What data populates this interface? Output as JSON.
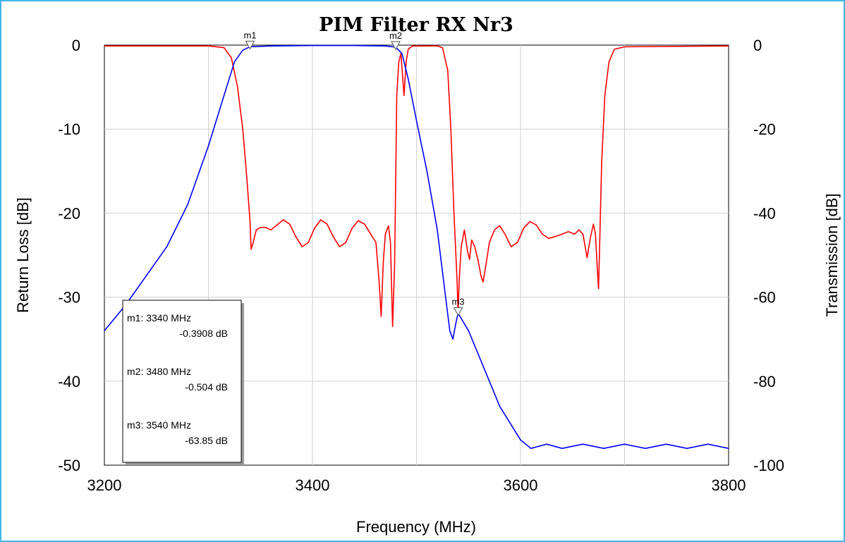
{
  "chart_data": {
    "type": "line",
    "title": "PIM Filter RX Nr3",
    "xlabel": "Frequency (MHz)",
    "ylabel_left": "Return Loss [dB]",
    "ylabel_right": "Transmission [dB]",
    "xlim": [
      3200,
      3800
    ],
    "ylim_left": [
      -50,
      0
    ],
    "ylim_right": [
      -100,
      0
    ],
    "x_ticks": [
      "3200",
      "3400",
      "3600",
      "3800"
    ],
    "y_ticks_left": [
      "0",
      "-10",
      "-20",
      "-30",
      "-40",
      "-50"
    ],
    "y_ticks_right": [
      "0",
      "-20",
      "-40",
      "-60",
      "-80",
      "-100"
    ],
    "grid": true,
    "series": [
      {
        "axis": "left",
        "color": "#ff0000",
        "points": [
          [
            3200,
            -0.1
          ],
          [
            3300,
            -0.1
          ],
          [
            3315,
            -0.3
          ],
          [
            3322,
            -1.5
          ],
          [
            3328,
            -5
          ],
          [
            3333,
            -10
          ],
          [
            3337,
            -16
          ],
          [
            3340,
            -21
          ],
          [
            3341,
            -24.3
          ],
          [
            3343,
            -23.5
          ],
          [
            3346,
            -22
          ],
          [
            3350,
            -21.7
          ],
          [
            3355,
            -21.7
          ],
          [
            3360,
            -22
          ],
          [
            3365,
            -21.5
          ],
          [
            3372,
            -20.8
          ],
          [
            3378,
            -21.3
          ],
          [
            3384,
            -22.8
          ],
          [
            3390,
            -24
          ],
          [
            3396,
            -23.5
          ],
          [
            3402,
            -21.8
          ],
          [
            3408,
            -20.8
          ],
          [
            3414,
            -21.3
          ],
          [
            3420,
            -22.8
          ],
          [
            3426,
            -24
          ],
          [
            3432,
            -23.5
          ],
          [
            3438,
            -21.8
          ],
          [
            3444,
            -20.9
          ],
          [
            3450,
            -21.3
          ],
          [
            3456,
            -22.5
          ],
          [
            3461,
            -23.5
          ],
          [
            3464,
            -28
          ],
          [
            3466,
            -32.3
          ],
          [
            3468,
            -26
          ],
          [
            3470,
            -22.5
          ],
          [
            3473,
            -21.5
          ],
          [
            3475,
            -23.5
          ],
          [
            3477,
            -33.5
          ],
          [
            3479,
            -26
          ],
          [
            3480,
            -16
          ],
          [
            3481,
            -6
          ],
          [
            3483,
            -2
          ],
          [
            3485,
            -1
          ],
          [
            3488,
            -6
          ],
          [
            3490,
            -2
          ],
          [
            3492,
            -0.5
          ],
          [
            3496,
            -0.1
          ],
          [
            3520,
            -0.1
          ],
          [
            3525,
            -0.3
          ],
          [
            3530,
            -3
          ],
          [
            3533,
            -10
          ],
          [
            3536,
            -20
          ],
          [
            3539,
            -28
          ],
          [
            3540,
            -32
          ],
          [
            3541,
            -28
          ],
          [
            3543,
            -24
          ],
          [
            3546,
            -22
          ],
          [
            3549,
            -24.5
          ],
          [
            3551,
            -25.5
          ],
          [
            3553,
            -23.2
          ],
          [
            3556,
            -24
          ],
          [
            3559,
            -25.5
          ],
          [
            3562,
            -27.5
          ],
          [
            3564,
            -28.2
          ],
          [
            3567,
            -26
          ],
          [
            3570,
            -23.5
          ],
          [
            3575,
            -22
          ],
          [
            3580,
            -21.5
          ],
          [
            3585,
            -22.5
          ],
          [
            3591,
            -24
          ],
          [
            3597,
            -23.5
          ],
          [
            3603,
            -21.8
          ],
          [
            3609,
            -21
          ],
          [
            3615,
            -21.4
          ],
          [
            3621,
            -22.5
          ],
          [
            3627,
            -23
          ],
          [
            3633,
            -22.8
          ],
          [
            3640,
            -22.5
          ],
          [
            3646,
            -22.2
          ],
          [
            3652,
            -22.5
          ],
          [
            3656,
            -22
          ],
          [
            3660,
            -22.5
          ],
          [
            3664,
            -25.3
          ],
          [
            3667,
            -23
          ],
          [
            3670,
            -21.3
          ],
          [
            3672,
            -22.5
          ],
          [
            3674,
            -27
          ],
          [
            3675,
            -29
          ],
          [
            3676,
            -24
          ],
          [
            3678,
            -14
          ],
          [
            3681,
            -6
          ],
          [
            3685,
            -2
          ],
          [
            3690,
            -0.5
          ],
          [
            3700,
            -0.2
          ],
          [
            3800,
            -0.1
          ]
        ]
      },
      {
        "axis": "right",
        "color": "#0000ff",
        "points": [
          [
            3200,
            -68
          ],
          [
            3220,
            -62
          ],
          [
            3240,
            -55
          ],
          [
            3260,
            -48
          ],
          [
            3280,
            -38
          ],
          [
            3300,
            -24
          ],
          [
            3315,
            -12
          ],
          [
            3325,
            -4
          ],
          [
            3333,
            -1.2
          ],
          [
            3340,
            -0.39
          ],
          [
            3360,
            -0.2
          ],
          [
            3400,
            -0.1
          ],
          [
            3440,
            -0.1
          ],
          [
            3470,
            -0.2
          ],
          [
            3480,
            -0.5
          ],
          [
            3486,
            -2
          ],
          [
            3492,
            -8
          ],
          [
            3500,
            -18
          ],
          [
            3510,
            -30
          ],
          [
            3520,
            -44
          ],
          [
            3527,
            -58
          ],
          [
            3532,
            -68
          ],
          [
            3535,
            -70
          ],
          [
            3538,
            -66
          ],
          [
            3540,
            -63.85
          ],
          [
            3550,
            -68
          ],
          [
            3560,
            -74
          ],
          [
            3570,
            -80
          ],
          [
            3580,
            -86
          ],
          [
            3590,
            -90
          ],
          [
            3600,
            -94
          ],
          [
            3610,
            -96
          ],
          [
            3625,
            -95
          ],
          [
            3640,
            -96
          ],
          [
            3660,
            -95
          ],
          [
            3680,
            -96
          ],
          [
            3700,
            -95
          ],
          [
            3720,
            -96
          ],
          [
            3740,
            -95
          ],
          [
            3760,
            -96
          ],
          [
            3780,
            -95
          ],
          [
            3800,
            -96
          ]
        ]
      }
    ],
    "markers": [
      {
        "label": "m1",
        "x": 3340,
        "y_right": -0.3908
      },
      {
        "label": "m2",
        "x": 3480,
        "y_right": -0.504
      },
      {
        "label": "m3",
        "x": 3540,
        "y_right": -63.85
      }
    ],
    "legend": {
      "placement": "bottom-left",
      "lines": [
        [
          "m1: 3340 MHz",
          "-0.3908 dB"
        ],
        [
          "m2: 3480 MHz",
          "-0.504 dB"
        ],
        [
          "m3: 3540 MHz",
          "-63.85 dB"
        ]
      ]
    }
  }
}
